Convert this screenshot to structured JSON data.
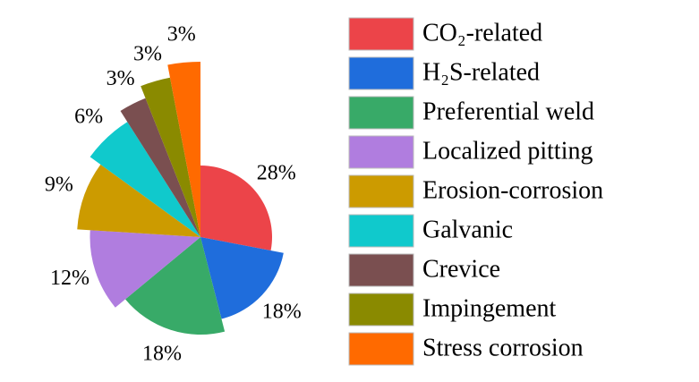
{
  "chart_data": {
    "type": "pie",
    "categories": [
      "CO₂-related",
      "H₂S-related",
      "Preferential weld",
      "Localized pitting",
      "Erosion-corrosion",
      "Galvanic",
      "Crevice",
      "Impingement",
      "Stress corrosion"
    ],
    "values": [
      28,
      18,
      18,
      12,
      9,
      6,
      3,
      3,
      3
    ],
    "value_labels": [
      "28%",
      "18%",
      "18%",
      "12%",
      "9%",
      "6%",
      "3%",
      "3%",
      "3%"
    ],
    "colors": [
      "#ec4449",
      "#1f6ddc",
      "#38aa68",
      "#b07ddf",
      "#cc9b00",
      "#10c9cc",
      "#7a4f50",
      "#8a8a00",
      "#ff6a00"
    ]
  }
}
